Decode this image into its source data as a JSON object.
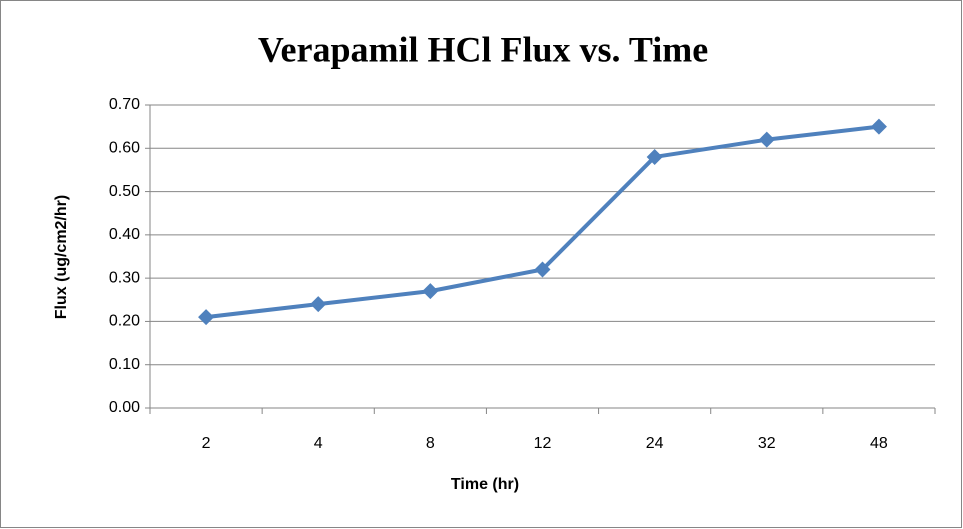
{
  "chart_data": {
    "type": "line",
    "title": "Verapamil HCl Flux vs. Time",
    "x_label": "Time (hr)",
    "y_label": "Flux (ug/cm2/hr)",
    "categories": [
      "2",
      "4",
      "8",
      "12",
      "24",
      "32",
      "48"
    ],
    "series": [
      {
        "color": "#4f81bd",
        "values": [
          0.21,
          0.24,
          0.27,
          0.32,
          0.58,
          0.62,
          0.65
        ]
      }
    ],
    "ylim": [
      0,
      0.7
    ],
    "yticks": [
      {
        "value": 0,
        "label": "0.00"
      },
      {
        "value": 0.1,
        "label": "0.10"
      },
      {
        "value": 0.2,
        "label": "0.20"
      },
      {
        "value": 0.3,
        "label": "0.30"
      },
      {
        "value": 0.4,
        "label": "0.40"
      },
      {
        "value": 0.5,
        "label": "0.50"
      },
      {
        "value": 0.6,
        "label": "0.60"
      },
      {
        "value": 0.7,
        "label": "0.70"
      }
    ],
    "grid": true
  }
}
